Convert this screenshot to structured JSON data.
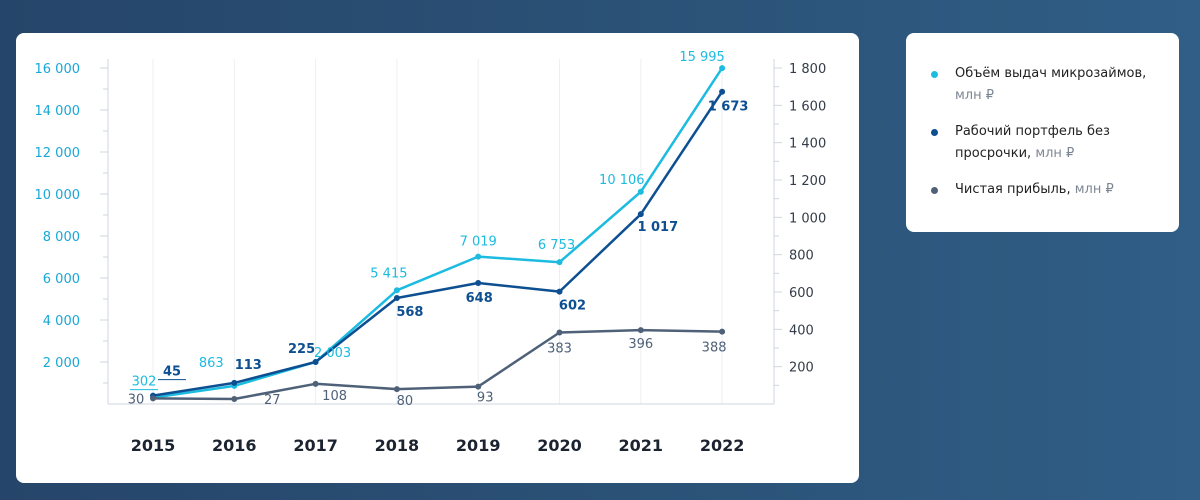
{
  "chart_data": {
    "type": "line",
    "title": "",
    "xlabel": "",
    "ylabel": "",
    "categories": [
      "2015",
      "2016",
      "2017",
      "2018",
      "2019",
      "2020",
      "2021",
      "2022"
    ],
    "left_axis": {
      "ylim": [
        0,
        16000
      ],
      "ticks": [
        "16 000",
        "14 000",
        "12 000",
        "10 000",
        "8 000",
        "6 000",
        "4 000",
        "2 000"
      ],
      "tick_values": [
        16000,
        14000,
        12000,
        10000,
        8000,
        6000,
        4000,
        2000
      ]
    },
    "right_axis": {
      "ylim": [
        0,
        1800
      ],
      "ticks": [
        "1 800",
        "1 600",
        "1 400",
        "1 200",
        "1 000",
        "800",
        "600",
        "400",
        "200"
      ],
      "tick_values": [
        1800,
        1600,
        1400,
        1200,
        1000,
        800,
        600,
        400,
        200
      ]
    },
    "series": [
      {
        "name": "Объём выдач микрозаймов,",
        "unit": "млн ₽",
        "axis": "left",
        "color": "#1cbbe0",
        "values": [
          302,
          863,
          2003,
          5415,
          7019,
          6753,
          10106,
          15995
        ],
        "labels": [
          "302",
          "863",
          "2 003",
          "5 415",
          "7 019",
          "6 753",
          "10 106",
          "15 995"
        ]
      },
      {
        "name": "Рабочий портфель без просрочки,",
        "unit": "млн ₽",
        "axis": "right",
        "color": "#0d4f91",
        "values": [
          45,
          113,
          225,
          568,
          648,
          602,
          1017,
          1673
        ],
        "labels": [
          "45",
          "113",
          "225",
          "568",
          "648",
          "602",
          "1 017",
          "1 673"
        ]
      },
      {
        "name": "Чистая прибыль,",
        "unit": "млн ₽",
        "axis": "right",
        "color": "#4f6178",
        "values": [
          30,
          27,
          108,
          80,
          93,
          383,
          396,
          388
        ],
        "labels": [
          "30",
          "27",
          "108",
          "80",
          "93",
          "383",
          "396",
          "388"
        ]
      }
    ],
    "grid": "vertical",
    "legend": "right"
  }
}
